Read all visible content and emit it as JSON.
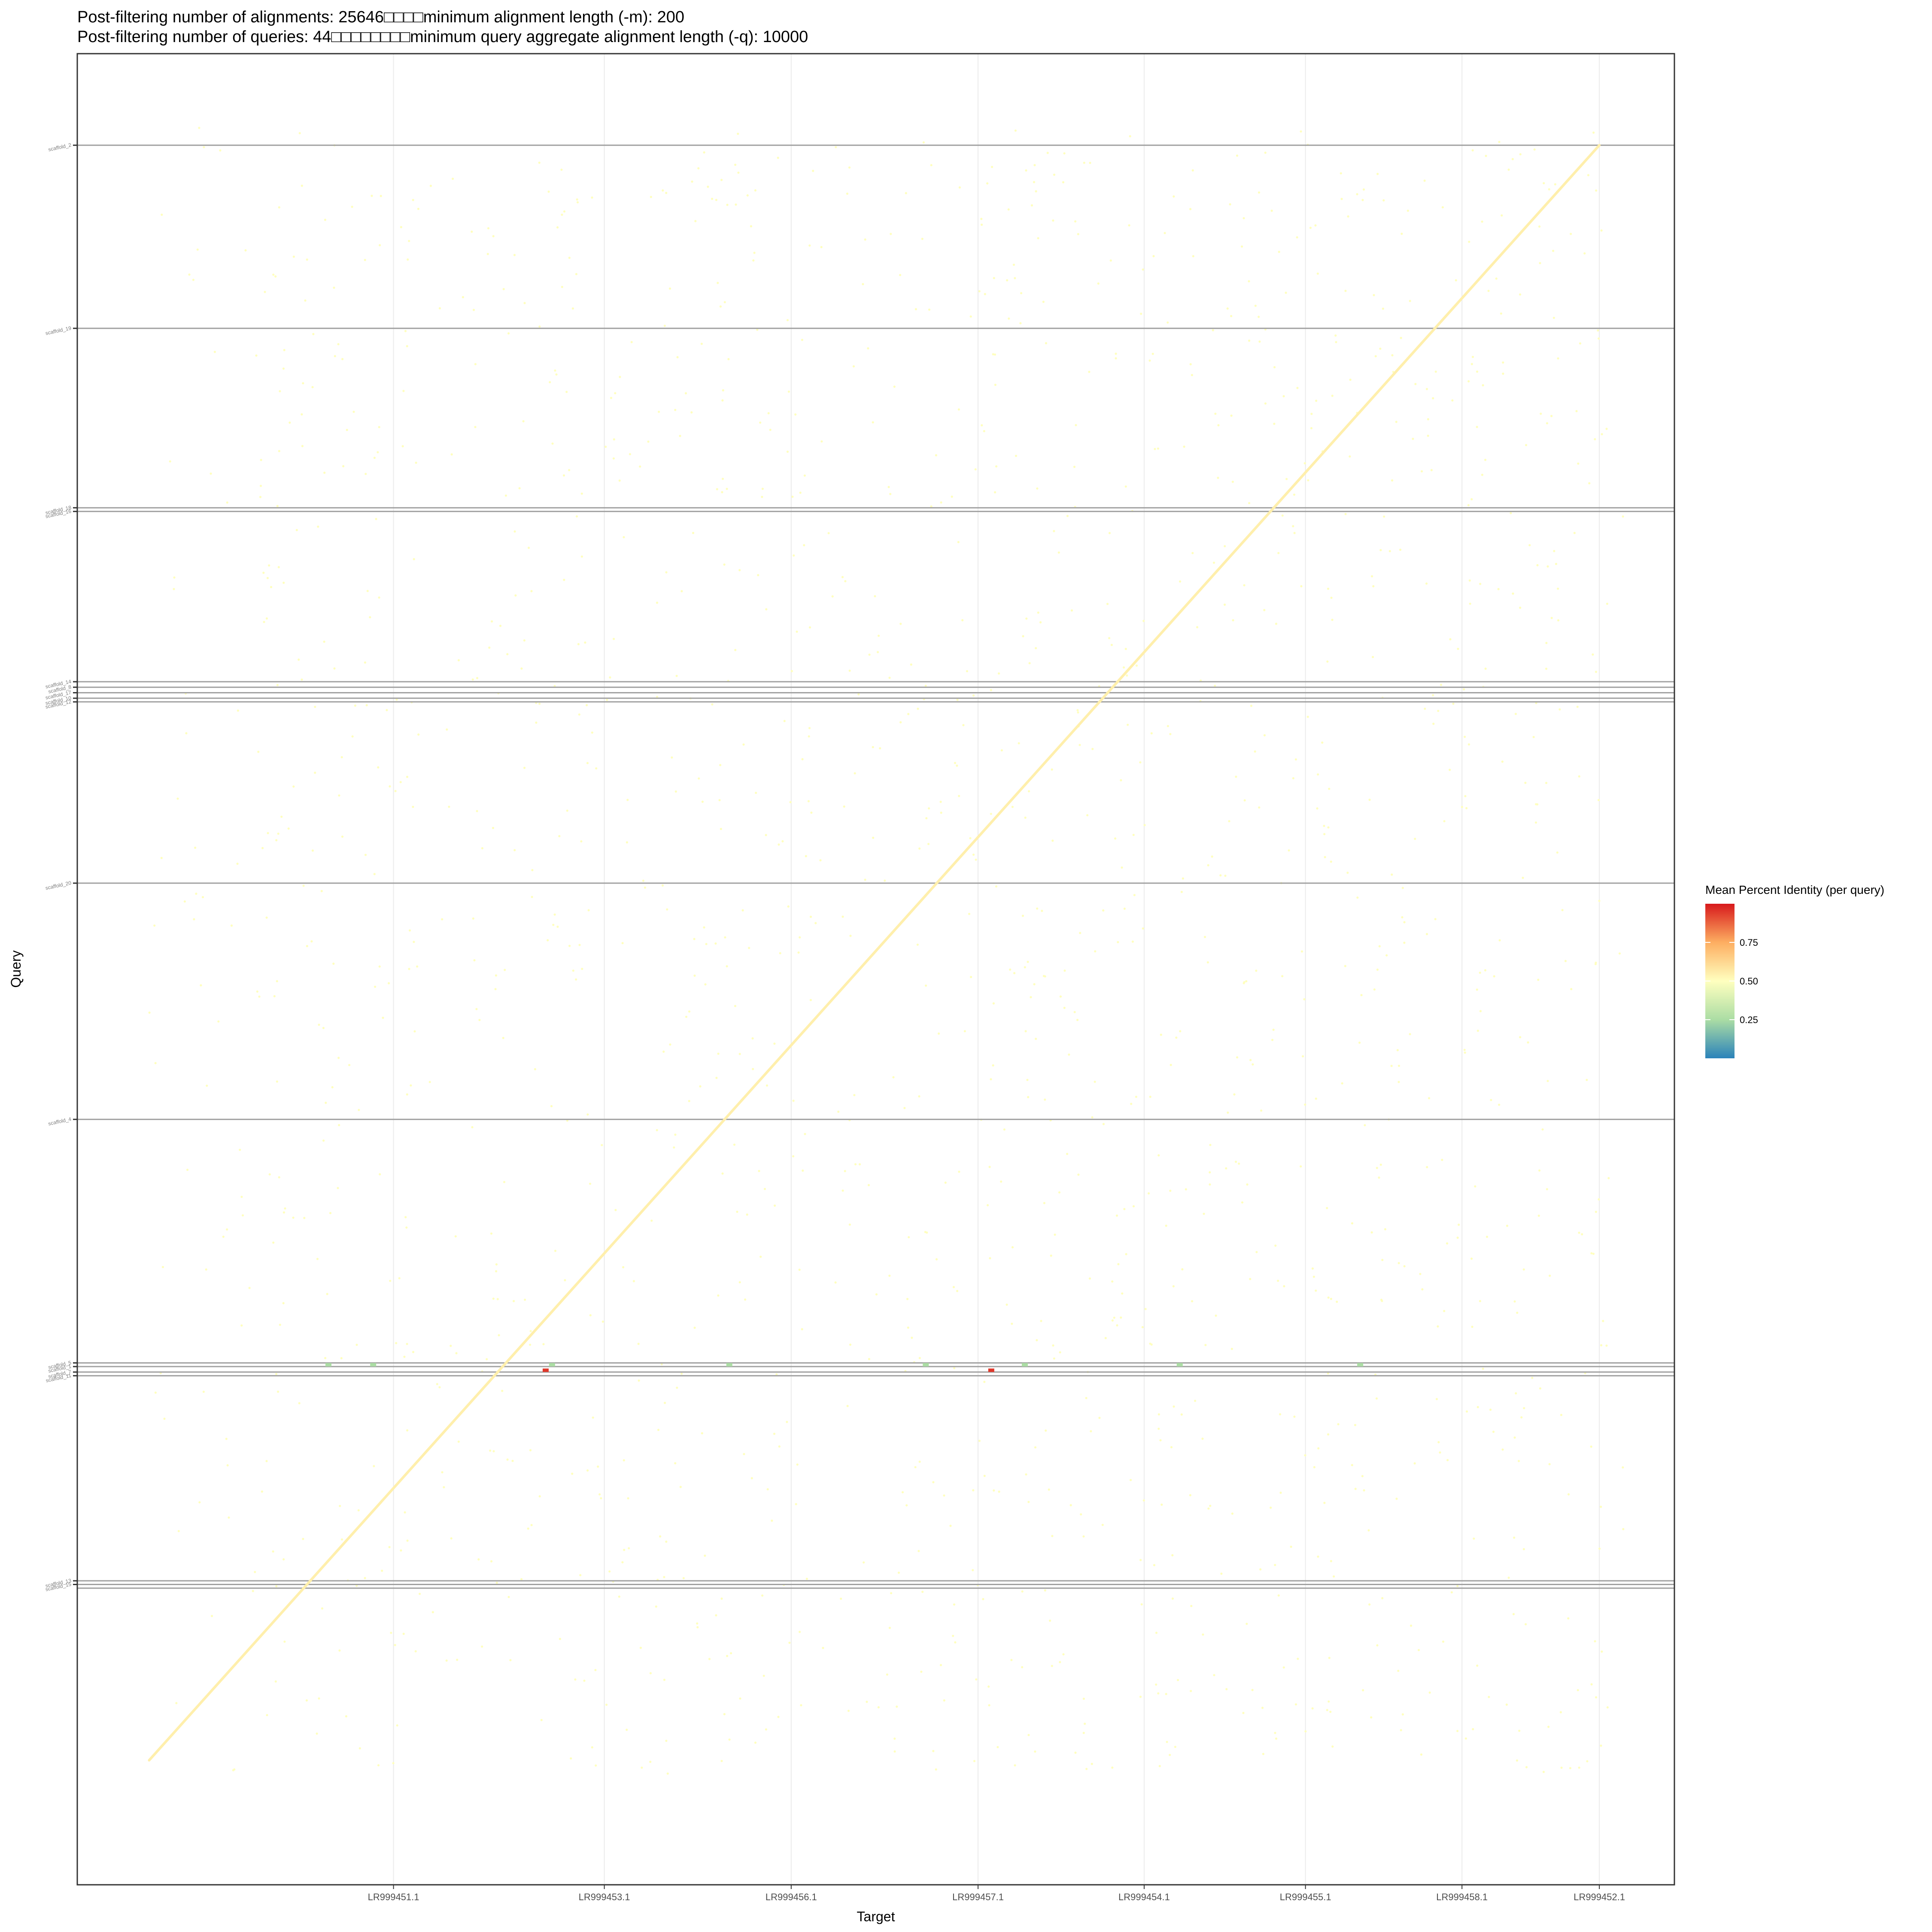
{
  "chart_data": {
    "type": "scatter",
    "title_lines": [
      "Post-filtering number of alignments: 25646□□□□minimum alignment length (-m): 200",
      "Post-filtering number of queries: 44□□□□□□□□minimum query aggregate alignment length (-q): 10000"
    ],
    "xlabel": "Target",
    "ylabel": "Query",
    "xlim": [
      0,
      1
    ],
    "ylim": [
      0,
      1
    ],
    "grid": true,
    "x_ticks": [
      {
        "label": "LR999451.1",
        "pos": 0.198
      },
      {
        "label": "LR999453.1",
        "pos": 0.33
      },
      {
        "label": "LR999456.1",
        "pos": 0.447
      },
      {
        "label": "LR999457.1",
        "pos": 0.564
      },
      {
        "label": "LR999454.1",
        "pos": 0.668
      },
      {
        "label": "LR999455.1",
        "pos": 0.769
      },
      {
        "label": "LR999458.1",
        "pos": 0.867
      },
      {
        "label": "LR999452.1",
        "pos": 0.953
      }
    ],
    "query_boundaries": [
      0.95,
      0.85,
      0.752,
      0.75,
      0.657,
      0.654,
      0.651,
      0.648,
      0.646,
      0.547,
      0.418,
      0.285,
      0.283,
      0.28,
      0.278,
      0.166,
      0.164,
      0.162
    ],
    "y_ticks": [
      {
        "label": "scaffold_2",
        "pos": 0.95
      },
      {
        "label": "scaffold_19",
        "pos": 0.85
      },
      {
        "label": "scaffold_18",
        "pos": 0.752
      },
      {
        "label": "scaffold_16",
        "pos": 0.75
      },
      {
        "label": "scaffold_14",
        "pos": 0.657
      },
      {
        "label": "scaffold_8",
        "pos": 0.654
      },
      {
        "label": "scaffold_17",
        "pos": 0.651
      },
      {
        "label": "scaffold_10",
        "pos": 0.648
      },
      {
        "label": "scaffold_12",
        "pos": 0.646
      },
      {
        "label": "scaffold_20",
        "pos": 0.547
      },
      {
        "label": "scaffold_4",
        "pos": 0.418
      },
      {
        "label": "scaffold_5",
        "pos": 0.285
      },
      {
        "label": "scaffold_1",
        "pos": 0.283
      },
      {
        "label": "scaffold_7",
        "pos": 0.28
      },
      {
        "label": "scaffold_11",
        "pos": 0.278
      },
      {
        "label": "scaffold_13",
        "pos": 0.166
      },
      {
        "label": "scaffold_15",
        "pos": 0.164
      }
    ],
    "diagonal": {
      "x": [
        0.045,
        0.953
      ],
      "y": [
        0.068,
        0.95
      ],
      "value": 0.55
    },
    "highlight_points": [
      {
        "x": 0.293,
        "y": 0.281,
        "value": 0.95
      },
      {
        "x": 0.572,
        "y": 0.281,
        "value": 0.95
      },
      {
        "x": 0.157,
        "y": 0.284,
        "value": 0.25
      },
      {
        "x": 0.185,
        "y": 0.284,
        "value": 0.25
      },
      {
        "x": 0.297,
        "y": 0.284,
        "value": 0.25
      },
      {
        "x": 0.408,
        "y": 0.284,
        "value": 0.25
      },
      {
        "x": 0.531,
        "y": 0.284,
        "value": 0.25
      },
      {
        "x": 0.593,
        "y": 0.284,
        "value": 0.25
      },
      {
        "x": 0.69,
        "y": 0.284,
        "value": 0.25
      },
      {
        "x": 0.803,
        "y": 0.284,
        "value": 0.25
      }
    ],
    "legend": {
      "title": "Mean Percent Identity (per query)",
      "position": "right",
      "ticks": [
        {
          "label": "0.75",
          "value": 0.75
        },
        {
          "label": "0.50",
          "value": 0.5
        },
        {
          "label": "0.25",
          "value": 0.25
        }
      ],
      "range": [
        0.0,
        1.0
      ],
      "colors": [
        "#2b83ba",
        "#abdda4",
        "#ffffbf",
        "#fdae61",
        "#d7191c"
      ]
    },
    "colors": {
      "panel_border": "#333333",
      "grid": "#ebebeb",
      "boundary_line": "#a0a0a0",
      "noise_point": "#ffffbf"
    }
  }
}
